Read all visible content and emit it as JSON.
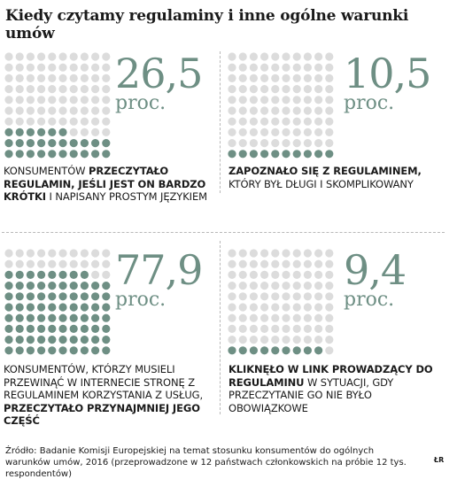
{
  "title": "Kiedy czytamy regulaminy i inne ogólne warunki umów",
  "unit_label": "proc.",
  "colors": {
    "filled": "#6e8f84",
    "empty": "#dcdcdc",
    "number": "#6e8f84"
  },
  "panels": [
    {
      "value_label": "26,5",
      "caption": [
        {
          "text": "Konsumentów ",
          "bold": false
        },
        {
          "text": "przeczytało regulamin, jeśli jest on bardzo krótki",
          "bold": true
        },
        {
          "text": " i napisany prostym językiem",
          "bold": false
        }
      ]
    },
    {
      "value_label": "10,5",
      "caption": [
        {
          "text": "Zapoznało się z regulaminem,",
          "bold": true
        },
        {
          "text": " który był długi i skomplikowany",
          "bold": false
        }
      ]
    },
    {
      "value_label": "77,9",
      "caption": [
        {
          "text": "Konsumentów, którzy musieli przewinąć w internecie stronę z regulaminem korzystania z usług, ",
          "bold": false
        },
        {
          "text": "przeczytało przynajmniej jego część",
          "bold": true
        }
      ]
    },
    {
      "value_label": "9,4",
      "caption": [
        {
          "text": "Kliknęło w link prowadzący do regulaminu",
          "bold": true
        },
        {
          "text": " w sytuacji, gdy przeczytanie go nie było obowiązkowe",
          "bold": false
        }
      ]
    }
  ],
  "source": "Źródło: Badanie Komisji Europejskiej na temat stosunku konsumentów do ogólnych warunków umów, 2016 (przeprowadzone w 12 państwach członkowskich na próbie 12 tys. respondentów)",
  "credit": "ŁR",
  "chart_data": [
    {
      "type": "waffle",
      "total": 100,
      "value": 26.5,
      "filled_dots": 26
    },
    {
      "type": "waffle",
      "total": 100,
      "value": 10.5,
      "filled_dots": 10
    },
    {
      "type": "waffle",
      "total": 100,
      "value": 77.9,
      "filled_dots": 78
    },
    {
      "type": "waffle",
      "total": 100,
      "value": 9.4,
      "filled_dots": 9
    }
  ]
}
